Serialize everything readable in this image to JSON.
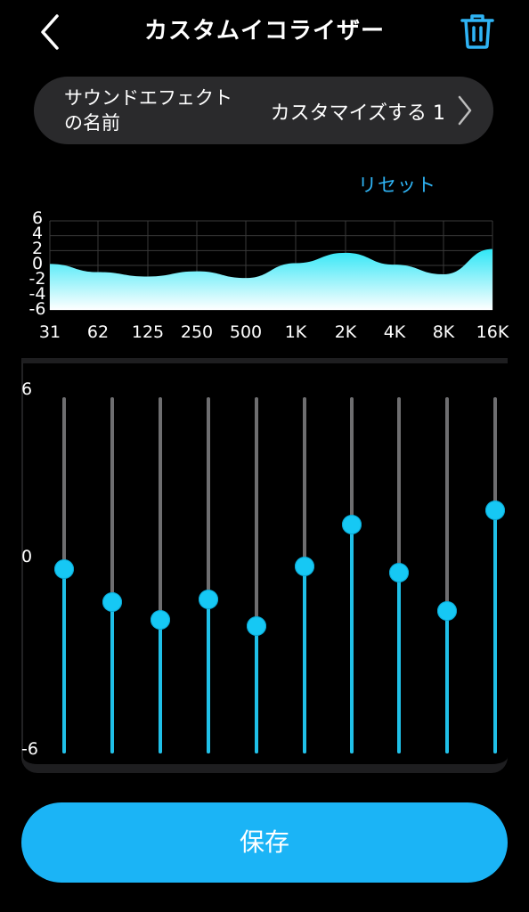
{
  "header": {
    "title": "カスタムイコライザー",
    "back_icon": "chevron-left-icon",
    "delete_icon": "trash-icon"
  },
  "preset": {
    "label": "サウンドエフェクト\nの名前",
    "value": "カスタマイズする 1",
    "chevron_icon": "chevron-right-icon"
  },
  "reset_label": "リセット",
  "curve": {
    "y_labels": [
      "6",
      "4",
      "2",
      "0",
      "-2",
      "-4",
      "-6"
    ],
    "y_range": [
      -6,
      6
    ]
  },
  "bands": [
    {
      "freq": "31",
      "gain": 0.2
    },
    {
      "freq": "62",
      "gain": -0.9
    },
    {
      "freq": "125",
      "gain": -1.5
    },
    {
      "freq": "250",
      "gain": -0.8
    },
    {
      "freq": "500",
      "gain": -1.7
    },
    {
      "freq": "1K",
      "gain": 0.3
    },
    {
      "freq": "2K",
      "gain": 1.7
    },
    {
      "freq": "4K",
      "gain": 0.1
    },
    {
      "freq": "8K",
      "gain": -1.2
    },
    {
      "freq": "16K",
      "gain": 2.2
    }
  ],
  "slider_scale": {
    "max": "6",
    "mid": "0",
    "min": "-6"
  },
  "save_label": "保存",
  "colors": {
    "accent": "#1bb4f6",
    "knob": "#16c8f4",
    "curve_top": "#2fe6f6",
    "curve_bottom": "#ffffff",
    "panel": "#2a2a2c"
  }
}
